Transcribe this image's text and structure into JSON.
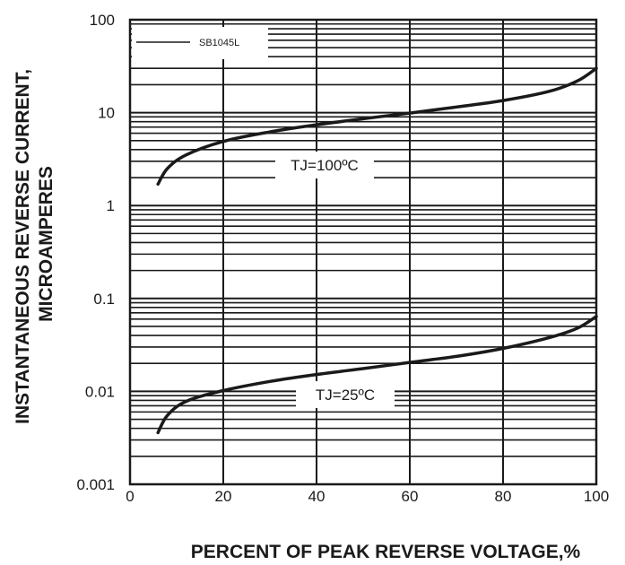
{
  "chart_data": {
    "type": "line",
    "x_scale": "linear",
    "y_scale": "log",
    "xlim": [
      0,
      100
    ],
    "ylim": [
      0.001,
      100
    ],
    "x_ticks": [
      "0",
      "20",
      "40",
      "60",
      "80",
      "100"
    ],
    "y_ticks": [
      "0.001",
      "0.01",
      "0.1",
      "1",
      "10",
      "100"
    ],
    "xlabel": "PERCENT OF PEAK REVERSE VOLTAGE,%",
    "ylabel": [
      "INSTANTANEOUS REVERSE CURRENT,",
      "MICROAMPERES"
    ],
    "grid": true,
    "legend": {
      "position": "top-left",
      "entries": [
        "SB1045L"
      ]
    },
    "series": [
      {
        "label": "TJ=100ºC",
        "x": [
          6,
          8,
          12,
          20,
          30,
          40,
          50,
          60,
          70,
          80,
          90,
          96,
          100
        ],
        "y": [
          1.7,
          2.5,
          3.5,
          4.9,
          6.2,
          7.4,
          8.6,
          9.9,
          11.5,
          13.5,
          17,
          22,
          30
        ]
      },
      {
        "label": "TJ=25ºC",
        "x": [
          6,
          8,
          12,
          20,
          30,
          40,
          50,
          60,
          70,
          80,
          90,
          96,
          100
        ],
        "y": [
          0.0036,
          0.0055,
          0.0078,
          0.0102,
          0.0128,
          0.0152,
          0.0176,
          0.0205,
          0.0238,
          0.029,
          0.038,
          0.048,
          0.064
        ]
      }
    ],
    "colors": {
      "line": "#1a1a1a",
      "grid": "#1a1a1a",
      "background": "#ffffff"
    }
  }
}
